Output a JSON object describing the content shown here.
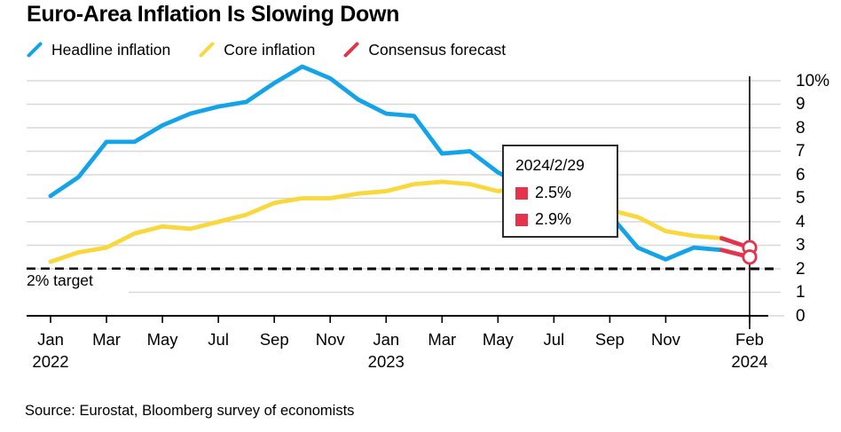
{
  "title": "Euro-Area Inflation Is Slowing Down",
  "legend": [
    {
      "label": "Headline inflation",
      "color": "#12a3e8"
    },
    {
      "label": "Core inflation",
      "color": "#f9d83e"
    },
    {
      "label": "Consensus forecast",
      "color": "#e4334b"
    }
  ],
  "tooltip": {
    "date": "2024/2/29",
    "marker_color": "#e4334b",
    "values": [
      "2.5%",
      "2.9%"
    ]
  },
  "source": "Source: Eurostat, Bloomberg survey of economists",
  "colors": {
    "headline": "#12a3e8",
    "core": "#f9d83e",
    "forecast": "#e4334b",
    "grid": "#d9d9d9",
    "axis": "#000000"
  },
  "chart_data": {
    "type": "line",
    "x_unit": "month",
    "x_start": "Jan 2022",
    "x_end": "Feb 2024",
    "x_axis": {
      "ticks": [
        {
          "index": 0,
          "label": "Jan",
          "year": "2022"
        },
        {
          "index": 2,
          "label": "Mar"
        },
        {
          "index": 4,
          "label": "May"
        },
        {
          "index": 6,
          "label": "Jul"
        },
        {
          "index": 8,
          "label": "Sep"
        },
        {
          "index": 10,
          "label": "Nov"
        },
        {
          "index": 12,
          "label": "Jan",
          "year": "2023"
        },
        {
          "index": 14,
          "label": "Mar"
        },
        {
          "index": 16,
          "label": "May"
        },
        {
          "index": 18,
          "label": "Jul"
        },
        {
          "index": 20,
          "label": "Sep"
        },
        {
          "index": 22,
          "label": "Nov"
        },
        {
          "index": 25,
          "label": "Feb",
          "year": "2024"
        }
      ]
    },
    "y_axis": {
      "range": [
        0,
        10
      ],
      "ticks": [
        {
          "value": 10,
          "label": "10%"
        },
        {
          "value": 9,
          "label": "9"
        },
        {
          "value": 8,
          "label": "8"
        },
        {
          "value": 7,
          "label": "7"
        },
        {
          "value": 6,
          "label": "6"
        },
        {
          "value": 5,
          "label": "5"
        },
        {
          "value": 4,
          "label": "4"
        },
        {
          "value": 3,
          "label": "3"
        },
        {
          "value": 2,
          "label": "2"
        },
        {
          "value": 1,
          "label": "1"
        },
        {
          "value": 0,
          "label": "0"
        }
      ]
    },
    "grid": true,
    "legend_position": "top",
    "series": [
      {
        "name": "Core inflation",
        "color": "#f9d83e",
        "start_index": 0,
        "values": [
          2.3,
          2.7,
          2.9,
          3.5,
          3.8,
          3.7,
          4.0,
          4.3,
          4.8,
          5.0,
          5.0,
          5.2,
          5.3,
          5.6,
          5.7,
          5.6,
          5.3,
          5.5,
          5.5,
          5.3,
          4.5,
          4.2,
          3.6,
          3.4,
          3.3
        ]
      },
      {
        "name": "Headline inflation",
        "color": "#12a3e8",
        "start_index": 0,
        "values": [
          5.1,
          5.9,
          7.4,
          7.4,
          8.1,
          8.6,
          8.9,
          9.1,
          9.9,
          10.6,
          10.1,
          9.2,
          8.6,
          8.5,
          6.9,
          7.0,
          6.1,
          5.5,
          5.3,
          5.2,
          4.3,
          2.9,
          2.4,
          2.9,
          2.8
        ]
      },
      {
        "name": "Consensus forecast (core)",
        "color": "#e4334b",
        "start_index": 24,
        "values": [
          3.3,
          2.9
        ]
      },
      {
        "name": "Consensus forecast (headline)",
        "color": "#e4334b",
        "start_index": 24,
        "values": [
          2.8,
          2.5
        ]
      }
    ],
    "endpoint_markers": [
      {
        "index": 25,
        "value": 2.9
      },
      {
        "index": 25,
        "value": 2.5
      }
    ],
    "target_line": {
      "value": 2,
      "label": "2% target"
    },
    "forecast_vline_index": 25
  }
}
